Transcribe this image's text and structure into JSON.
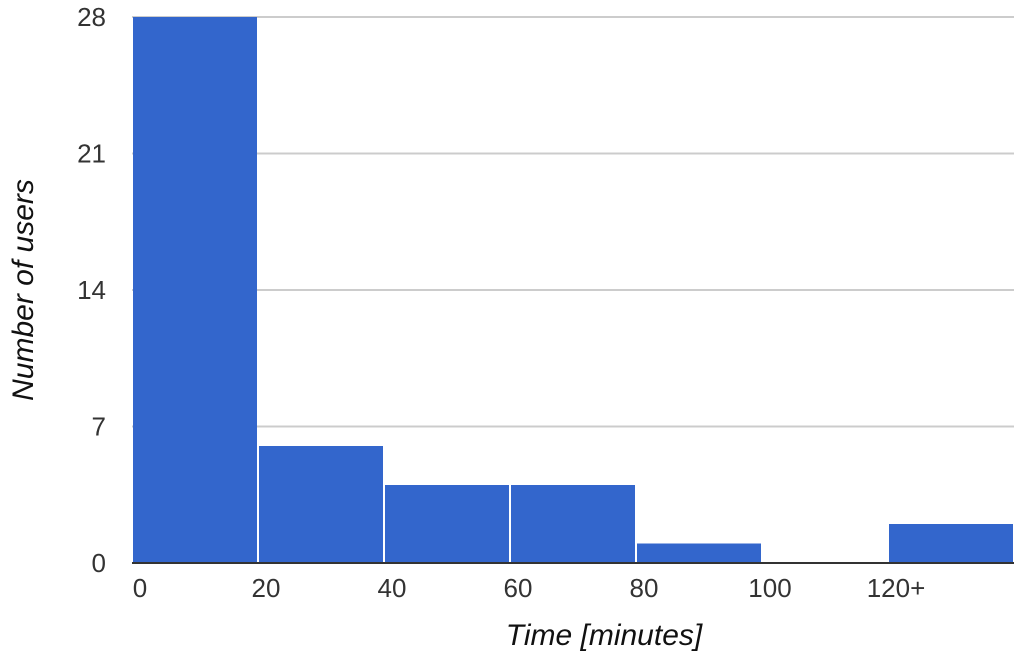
{
  "chart_data": {
    "type": "bar",
    "categories": [
      "0",
      "20",
      "40",
      "60",
      "80",
      "100",
      "120+"
    ],
    "values": [
      28,
      6,
      4,
      4,
      1,
      0,
      2
    ],
    "xlabel": "Time [minutes]",
    "ylabel": "Number of users",
    "ylim": [
      0,
      28
    ],
    "yticks": [
      "0",
      "7",
      "14",
      "21",
      "28"
    ],
    "grid": true,
    "legend": "none",
    "bar_color": "#3366cc"
  }
}
